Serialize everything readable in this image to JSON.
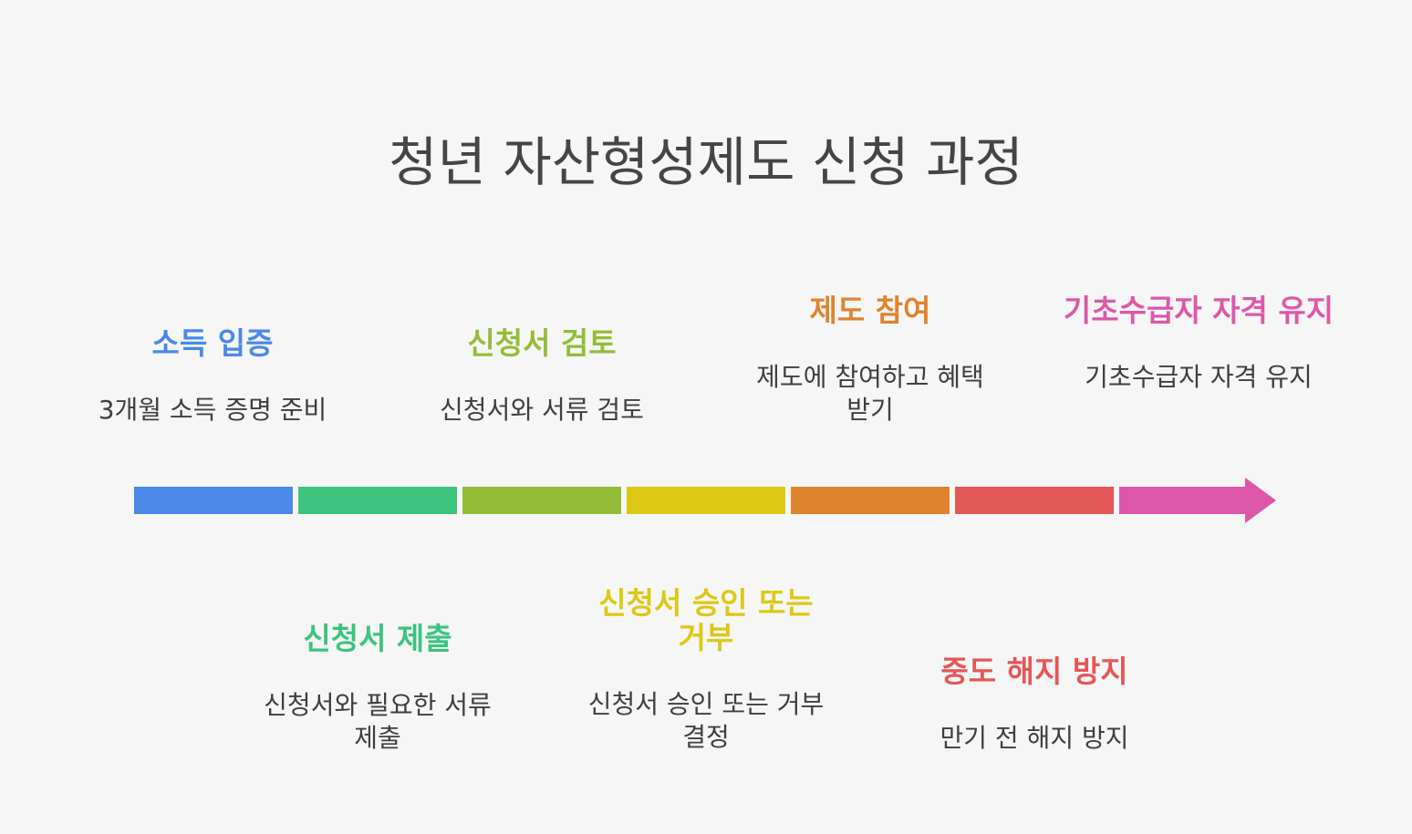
{
  "title": "청년 자산형성제도 신청 과정",
  "steps": [
    {
      "title": "소득 입증",
      "desc": "3개월 소득 증명 준비",
      "color": "#4a89e8"
    },
    {
      "title": "신청서 제출",
      "desc": "신청서와 필요한 서류 제출",
      "color": "#3cc47f"
    },
    {
      "title": "신청서 검토",
      "desc": "신청서와 서류 검토",
      "color": "#94bd37"
    },
    {
      "title": "신청서 승인 또는 거부",
      "desc": "신청서 승인 또는 거부 결정",
      "color": "#ddc814"
    },
    {
      "title": "제도 참여",
      "desc": "제도에 참여하고 혜택 받기",
      "color": "#e0832e"
    },
    {
      "title": "중도 해지 방지",
      "desc": "만기 전 해지 방지",
      "color": "#e45757"
    },
    {
      "title": "기초수급자 자격 유지",
      "desc": "기초수급자 자격 유지",
      "color": "#dd57a9"
    }
  ]
}
